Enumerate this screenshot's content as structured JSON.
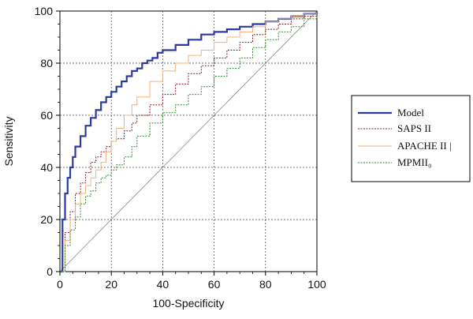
{
  "chart_data": {
    "type": "line",
    "xlabel": "100-Specificity",
    "ylabel": "Sensitivity",
    "xlim": [
      0,
      100
    ],
    "ylim": [
      0,
      100
    ],
    "x_ticks": [
      "0",
      "20",
      "40",
      "60",
      "80",
      "100"
    ],
    "y_ticks": [
      "0",
      "20",
      "40",
      "60",
      "80",
      "100"
    ],
    "grid": true,
    "grid_style": "dotted",
    "legend_position": "right",
    "reference_line": {
      "x": [
        0,
        100
      ],
      "y": [
        0,
        100
      ],
      "color": "#888888"
    },
    "series": [
      {
        "name": "Model",
        "color": "#2b3a9e",
        "style": "solid-thick",
        "x": [
          0,
          1,
          2,
          3,
          4,
          5,
          6,
          8,
          10,
          12,
          14,
          16,
          18,
          20,
          22,
          24,
          26,
          28,
          30,
          32,
          34,
          36,
          38,
          40,
          45,
          50,
          55,
          60,
          65,
          70,
          75,
          80,
          85,
          90,
          95,
          100
        ],
        "y": [
          0,
          20,
          30,
          36,
          40,
          44,
          48,
          52,
          56,
          59,
          62,
          65,
          67,
          69,
          71,
          73,
          75,
          77,
          78,
          80,
          81,
          82,
          84,
          85,
          87,
          89,
          91,
          92,
          93,
          94,
          95,
          96,
          97,
          98,
          99,
          100
        ]
      },
      {
        "name": "SAPS II",
        "color": "#8b1a1a",
        "style": "dotted",
        "x": [
          0,
          2,
          4,
          6,
          8,
          10,
          12,
          14,
          16,
          18,
          20,
          22,
          25,
          28,
          30,
          35,
          40,
          45,
          50,
          55,
          60,
          65,
          70,
          75,
          80,
          85,
          90,
          95,
          100
        ],
        "y": [
          0,
          15,
          23,
          30,
          34,
          38,
          42,
          44,
          46,
          48,
          50,
          51,
          54,
          57,
          60,
          64,
          68,
          72,
          76,
          79,
          82,
          85,
          88,
          91,
          93,
          95,
          97,
          98,
          100
        ]
      },
      {
        "name": "APACHE II  |",
        "color": "#f0b07a",
        "style": "solid-thin",
        "x": [
          0,
          2,
          4,
          6,
          8,
          10,
          12,
          14,
          16,
          18,
          20,
          22,
          25,
          28,
          30,
          35,
          40,
          45,
          50,
          55,
          60,
          65,
          70,
          75,
          80,
          85,
          90,
          95,
          100
        ],
        "y": [
          0,
          12,
          20,
          26,
          30,
          33,
          36,
          39,
          42,
          46,
          50,
          55,
          60,
          64,
          67,
          73,
          77,
          80,
          83,
          85,
          88,
          90,
          92,
          94,
          96,
          97,
          98,
          99,
          100
        ]
      },
      {
        "name": "MPMII₀",
        "color": "#2e8b2e",
        "style": "dotted",
        "x": [
          0,
          2,
          4,
          6,
          8,
          10,
          12,
          14,
          16,
          18,
          20,
          22,
          25,
          28,
          30,
          35,
          40,
          45,
          50,
          55,
          60,
          65,
          70,
          75,
          80,
          85,
          90,
          95,
          100
        ],
        "y": [
          0,
          10,
          16,
          21,
          26,
          29,
          31,
          34,
          36,
          37,
          39,
          41,
          44,
          48,
          52,
          57,
          61,
          64,
          68,
          71,
          75,
          78,
          82,
          86,
          89,
          92,
          94,
          97,
          100
        ]
      }
    ]
  }
}
